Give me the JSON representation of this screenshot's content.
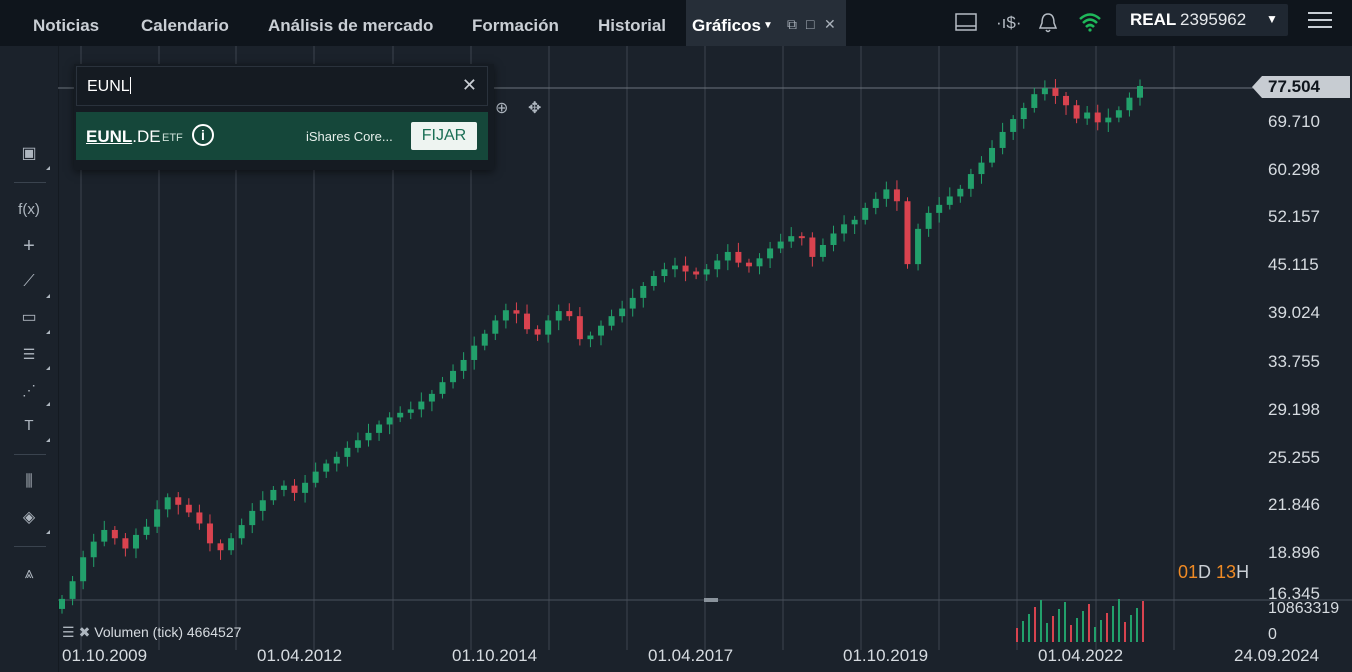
{
  "nav": {
    "tabs": [
      "Noticias",
      "Calendario",
      "Análisis de mercado",
      "Formación",
      "Historial"
    ],
    "active_tab": "Gráficos"
  },
  "account": {
    "type": "REAL",
    "number": "2395962"
  },
  "search": {
    "value": "EUNL",
    "result": {
      "symbol_bold": "EUNL",
      "symbol_rest": ".DE",
      "type": "ETF",
      "name": "iShares Core...",
      "pin_label": "FIJAR"
    }
  },
  "chart": {
    "last_price": "77.504",
    "price_labels": [
      "69.710",
      "60.298",
      "52.157",
      "45.115",
      "39.024",
      "33.755",
      "29.198",
      "25.255",
      "21.846",
      "18.896",
      "16.345"
    ],
    "date_labels": [
      "01.10.2009",
      "01.04.2012",
      "01.10.2014",
      "01.04.2017",
      "01.10.2019",
      "01.04.2022",
      "24.09.2024"
    ],
    "timer_days": "01",
    "timer_days_unit": "D",
    "timer_hours": "13",
    "timer_hours_unit": "H",
    "volume_max": "10863319",
    "volume_zero": "0",
    "volume_legend": "Volumen (tick) 4664527",
    "colors": {
      "up": "#22a06b",
      "down": "#d9434f",
      "background": "#1b222b",
      "grid": "#3a424c"
    }
  },
  "chart_data": {
    "type": "candlestick",
    "scale": "log",
    "ylim": [
      16.345,
      77.504
    ],
    "close_series": [
      16.3,
      17.2,
      18.5,
      19.4,
      20.1,
      19.6,
      19.0,
      19.8,
      20.3,
      21.4,
      22.2,
      21.7,
      21.2,
      20.5,
      19.3,
      18.9,
      19.6,
      20.4,
      21.3,
      22.0,
      22.7,
      23.0,
      22.5,
      23.2,
      24.0,
      24.6,
      25.1,
      25.8,
      26.4,
      27.0,
      27.7,
      28.3,
      28.7,
      29.0,
      29.7,
      30.4,
      31.5,
      32.6,
      33.7,
      35.2,
      36.5,
      38.0,
      39.2,
      38.8,
      37.0,
      36.4,
      38.0,
      39.1,
      38.5,
      35.9,
      36.3,
      37.4,
      38.5,
      39.4,
      40.7,
      42.2,
      43.5,
      44.4,
      44.9,
      44.1,
      43.7,
      44.4,
      45.6,
      46.8,
      45.3,
      44.8,
      45.9,
      47.3,
      48.3,
      49.1,
      48.9,
      46.1,
      47.8,
      49.5,
      50.9,
      51.6,
      53.5,
      55.0,
      56.6,
      54.6,
      45.1,
      50.2,
      52.7,
      54.0,
      55.4,
      56.7,
      59.3,
      61.4,
      64.2,
      67.4,
      70.1,
      72.5,
      75.6,
      77.0,
      75.2,
      73.1,
      70.2,
      71.5,
      69.4,
      70.4,
      72.0,
      74.8,
      77.5
    ]
  }
}
